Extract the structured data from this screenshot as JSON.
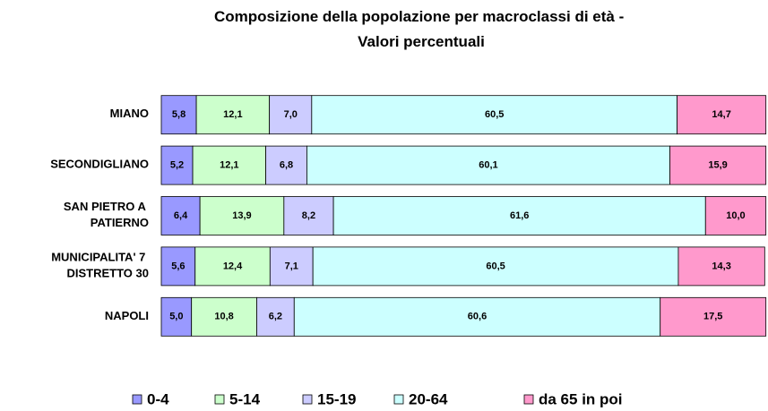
{
  "chart_data": {
    "type": "stacked_barh",
    "title": "Composizione della popolazione per macroclassi di età - Valori percentuali",
    "categories": [
      "MIANO",
      "SECONDIGLIANO",
      "SAN PIETRO A PATIERNO",
      "MUNICIPALITA' 7 DISTRETTO 30",
      "NAPOLI"
    ],
    "xlim": [
      0,
      100
    ],
    "legend": "bottom",
    "series": [
      {
        "name": "0-4",
        "color": "#9999ff",
        "values": [
          5.8,
          5.2,
          6.4,
          5.6,
          5.0
        ],
        "value_labels": [
          "5,8",
          "5,2",
          "6,4",
          "5,6",
          "5,0"
        ]
      },
      {
        "name": "5-14",
        "color": "#ccffcc",
        "values": [
          12.1,
          12.1,
          13.9,
          12.4,
          10.8
        ],
        "value_labels": [
          "12,1",
          "12,1",
          "13,9",
          "12,4",
          "10,8"
        ]
      },
      {
        "name": "15-19",
        "color": "#ccccff",
        "values": [
          7.0,
          6.8,
          8.2,
          7.1,
          6.2
        ],
        "value_labels": [
          "7,0",
          "6,8",
          "8,2",
          "7,1",
          "6,2"
        ]
      },
      {
        "name": "20-64",
        "color": "#ccffff",
        "values": [
          60.5,
          60.1,
          61.6,
          60.5,
          60.6
        ],
        "value_labels": [
          "60,5",
          "60,1",
          "61,6",
          "60,5",
          "60,6"
        ]
      },
      {
        "name": "da 65 in poi",
        "color": "#ff99cc",
        "values": [
          14.7,
          15.9,
          10.0,
          14.3,
          17.5
        ],
        "value_labels": [
          "14,7",
          "15,9",
          "10,0",
          "14,3",
          "17,5"
        ]
      }
    ]
  }
}
